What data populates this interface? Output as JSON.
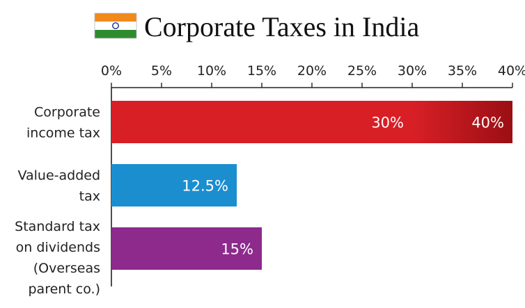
{
  "header": {
    "title": "Corporate Taxes in India",
    "flag_icon": "india-flag-icon"
  },
  "chart_data": {
    "type": "bar",
    "orientation": "horizontal",
    "title": "Corporate Taxes in India",
    "xlim": [
      0,
      40
    ],
    "xticks": [
      "0%",
      "5%",
      "10%",
      "15%",
      "20%",
      "25%",
      "30%",
      "35%",
      "40%"
    ],
    "xlabel": "",
    "ylabel": "",
    "grid": false,
    "legend": "none",
    "categories": [
      [
        "Corporate",
        "income tax"
      ],
      [
        "Value-added",
        "tax"
      ],
      [
        "Standard tax",
        "on dividends",
        "(Overseas",
        "parent co.)"
      ]
    ],
    "bars": [
      {
        "segments": [
          {
            "start": 0,
            "end": 30,
            "label": "30%",
            "color": "#d81f26"
          },
          {
            "start": 30,
            "end": 40,
            "label": "40%",
            "color": "#9a0f14"
          }
        ]
      },
      {
        "segments": [
          {
            "start": 0,
            "end": 12.5,
            "label": "12.5%",
            "color": "#1b8ed0"
          }
        ]
      },
      {
        "segments": [
          {
            "start": 0,
            "end": 15,
            "label": "15%",
            "color": "#8d2a8c"
          }
        ]
      }
    ]
  }
}
